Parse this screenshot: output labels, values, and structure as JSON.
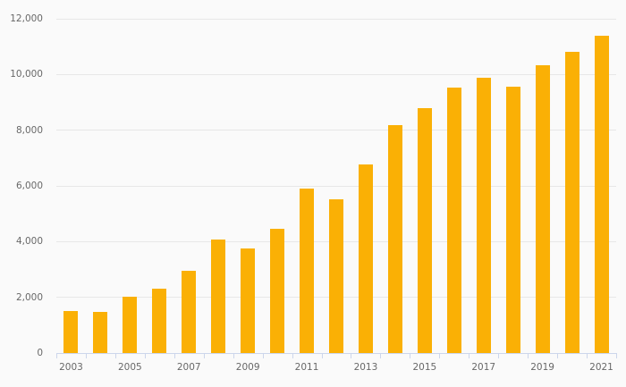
{
  "chart_data": {
    "type": "bar",
    "title": "",
    "xlabel": "",
    "ylabel": "",
    "categories": [
      "2003",
      "2004",
      "2005",
      "2006",
      "2007",
      "2008",
      "2009",
      "2010",
      "2011",
      "2012",
      "2013",
      "2014",
      "2015",
      "2016",
      "2017",
      "2018",
      "2019",
      "2020",
      "2021"
    ],
    "values": [
      1510,
      1480,
      2030,
      2310,
      2950,
      4090,
      3770,
      4460,
      5900,
      5530,
      6770,
      8190,
      8800,
      9540,
      9870,
      9570,
      10330,
      10810,
      11390
    ],
    "ylim": [
      0,
      12000
    ],
    "y_tick_interval": 2000,
    "y_tick_values": [
      0,
      2000,
      4000,
      6000,
      8000,
      10000,
      12000
    ],
    "y_tick_labels": [
      "0",
      "2,000",
      "4,000",
      "6,000",
      "8,000",
      "10,000",
      "12,000"
    ],
    "x_tick_labels_shown": [
      "2003",
      "2005",
      "2007",
      "2009",
      "2011",
      "2013",
      "2015",
      "2017",
      "2019",
      "2021"
    ],
    "x_label_every": 2,
    "grid": "horizontal",
    "legend": "none",
    "colors": {
      "bar": "#fab005",
      "gridline": "#e7e7e7",
      "axis": "#ccd6eb",
      "label": "#686868",
      "background": "#fafafa"
    }
  }
}
